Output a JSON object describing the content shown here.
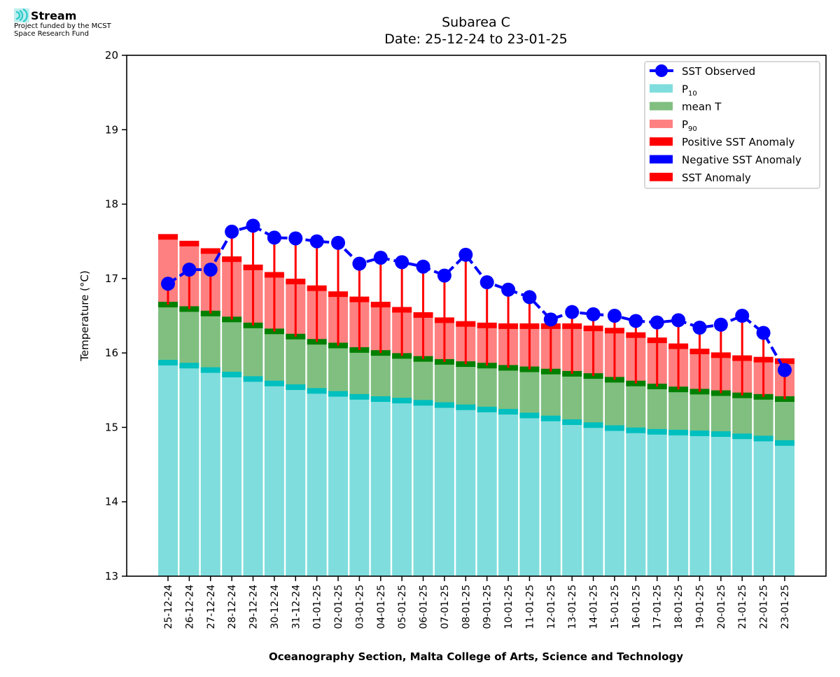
{
  "logo": {
    "name": "Stream",
    "subtitle_line1": "Project funded by the MCST",
    "subtitle_line2": "Space Research Fund"
  },
  "chart_data": {
    "type": "bar",
    "title_line1": "Subarea C",
    "title_line2": "Date: 25-12-24 to 23-01-25",
    "xlabel": "Oceanography Section, Malta College of Arts, Science and Technology",
    "ylabel": "Temperature (°C)",
    "ylim": [
      13,
      20
    ],
    "yticks": [
      13,
      14,
      15,
      16,
      17,
      18,
      19,
      20
    ],
    "grid": false,
    "legend_position": "top-right",
    "legend": [
      {
        "label": "SST Observed",
        "kind": "line-marker",
        "color": "#0000ff"
      },
      {
        "label": "P",
        "sub": "10",
        "kind": "patch",
        "color": "#7fdddd"
      },
      {
        "label": "mean T",
        "kind": "patch",
        "color": "#80bf80"
      },
      {
        "label": "P",
        "sub": "90",
        "kind": "patch",
        "color": "#ff8080"
      },
      {
        "label": "Positive SST Anomaly",
        "kind": "patch",
        "color": "#ff0000"
      },
      {
        "label": "Negative SST Anomaly",
        "kind": "patch",
        "color": "#0000ff"
      },
      {
        "label": "SST Anomaly",
        "kind": "patch",
        "color": "#ff0000"
      }
    ],
    "colors": {
      "p10_fill": "#7fdddd",
      "p10_band": "#00bfbf",
      "mean_fill": "#80bf80",
      "mean_band": "#008000",
      "p90_fill": "#ff8080",
      "p90_band": "#ff0000",
      "anomaly_positive": "#ff0000",
      "observed": "#0000ff"
    },
    "categories": [
      "25-12-24",
      "26-12-24",
      "27-12-24",
      "28-12-24",
      "29-12-24",
      "30-12-24",
      "31-12-24",
      "01-01-25",
      "02-01-25",
      "03-01-25",
      "04-01-25",
      "05-01-25",
      "06-01-25",
      "07-01-25",
      "08-01-25",
      "09-01-25",
      "10-01-25",
      "11-01-25",
      "12-01-25",
      "13-01-25",
      "14-01-25",
      "15-01-25",
      "16-01-25",
      "17-01-25",
      "18-01-25",
      "19-01-25",
      "20-01-25",
      "21-01-25",
      "22-01-25",
      "23-01-25"
    ],
    "series": [
      {
        "name": "P10",
        "values": [
          15.87,
          15.83,
          15.77,
          15.71,
          15.65,
          15.59,
          15.54,
          15.49,
          15.45,
          15.41,
          15.38,
          15.36,
          15.33,
          15.3,
          15.27,
          15.24,
          15.21,
          15.16,
          15.12,
          15.07,
          15.03,
          14.99,
          14.96,
          14.94,
          14.93,
          14.92,
          14.91,
          14.88,
          14.85,
          14.79
        ]
      },
      {
        "name": "mean T",
        "values": [
          16.65,
          16.59,
          16.53,
          16.45,
          16.37,
          16.29,
          16.22,
          16.15,
          16.1,
          16.04,
          16.0,
          15.96,
          15.92,
          15.88,
          15.85,
          15.83,
          15.8,
          15.78,
          15.75,
          15.72,
          15.69,
          15.64,
          15.59,
          15.55,
          15.51,
          15.48,
          15.46,
          15.43,
          15.41,
          15.38
        ]
      },
      {
        "name": "P90",
        "values": [
          17.56,
          17.47,
          17.37,
          17.26,
          17.15,
          17.05,
          16.96,
          16.87,
          16.79,
          16.72,
          16.65,
          16.58,
          16.51,
          16.44,
          16.39,
          16.37,
          16.36,
          16.36,
          16.36,
          16.36,
          16.33,
          16.3,
          16.24,
          16.17,
          16.09,
          16.02,
          15.97,
          15.93,
          15.91,
          15.89
        ]
      },
      {
        "name": "SST Observed",
        "values": [
          16.93,
          17.12,
          17.12,
          17.63,
          17.71,
          17.55,
          17.54,
          17.5,
          17.48,
          17.2,
          17.28,
          17.22,
          17.16,
          17.04,
          17.32,
          16.95,
          16.85,
          16.75,
          16.45,
          16.55,
          16.52,
          16.5,
          16.43,
          16.41,
          16.44,
          16.34,
          16.38,
          16.5,
          16.27,
          15.77
        ]
      }
    ]
  }
}
